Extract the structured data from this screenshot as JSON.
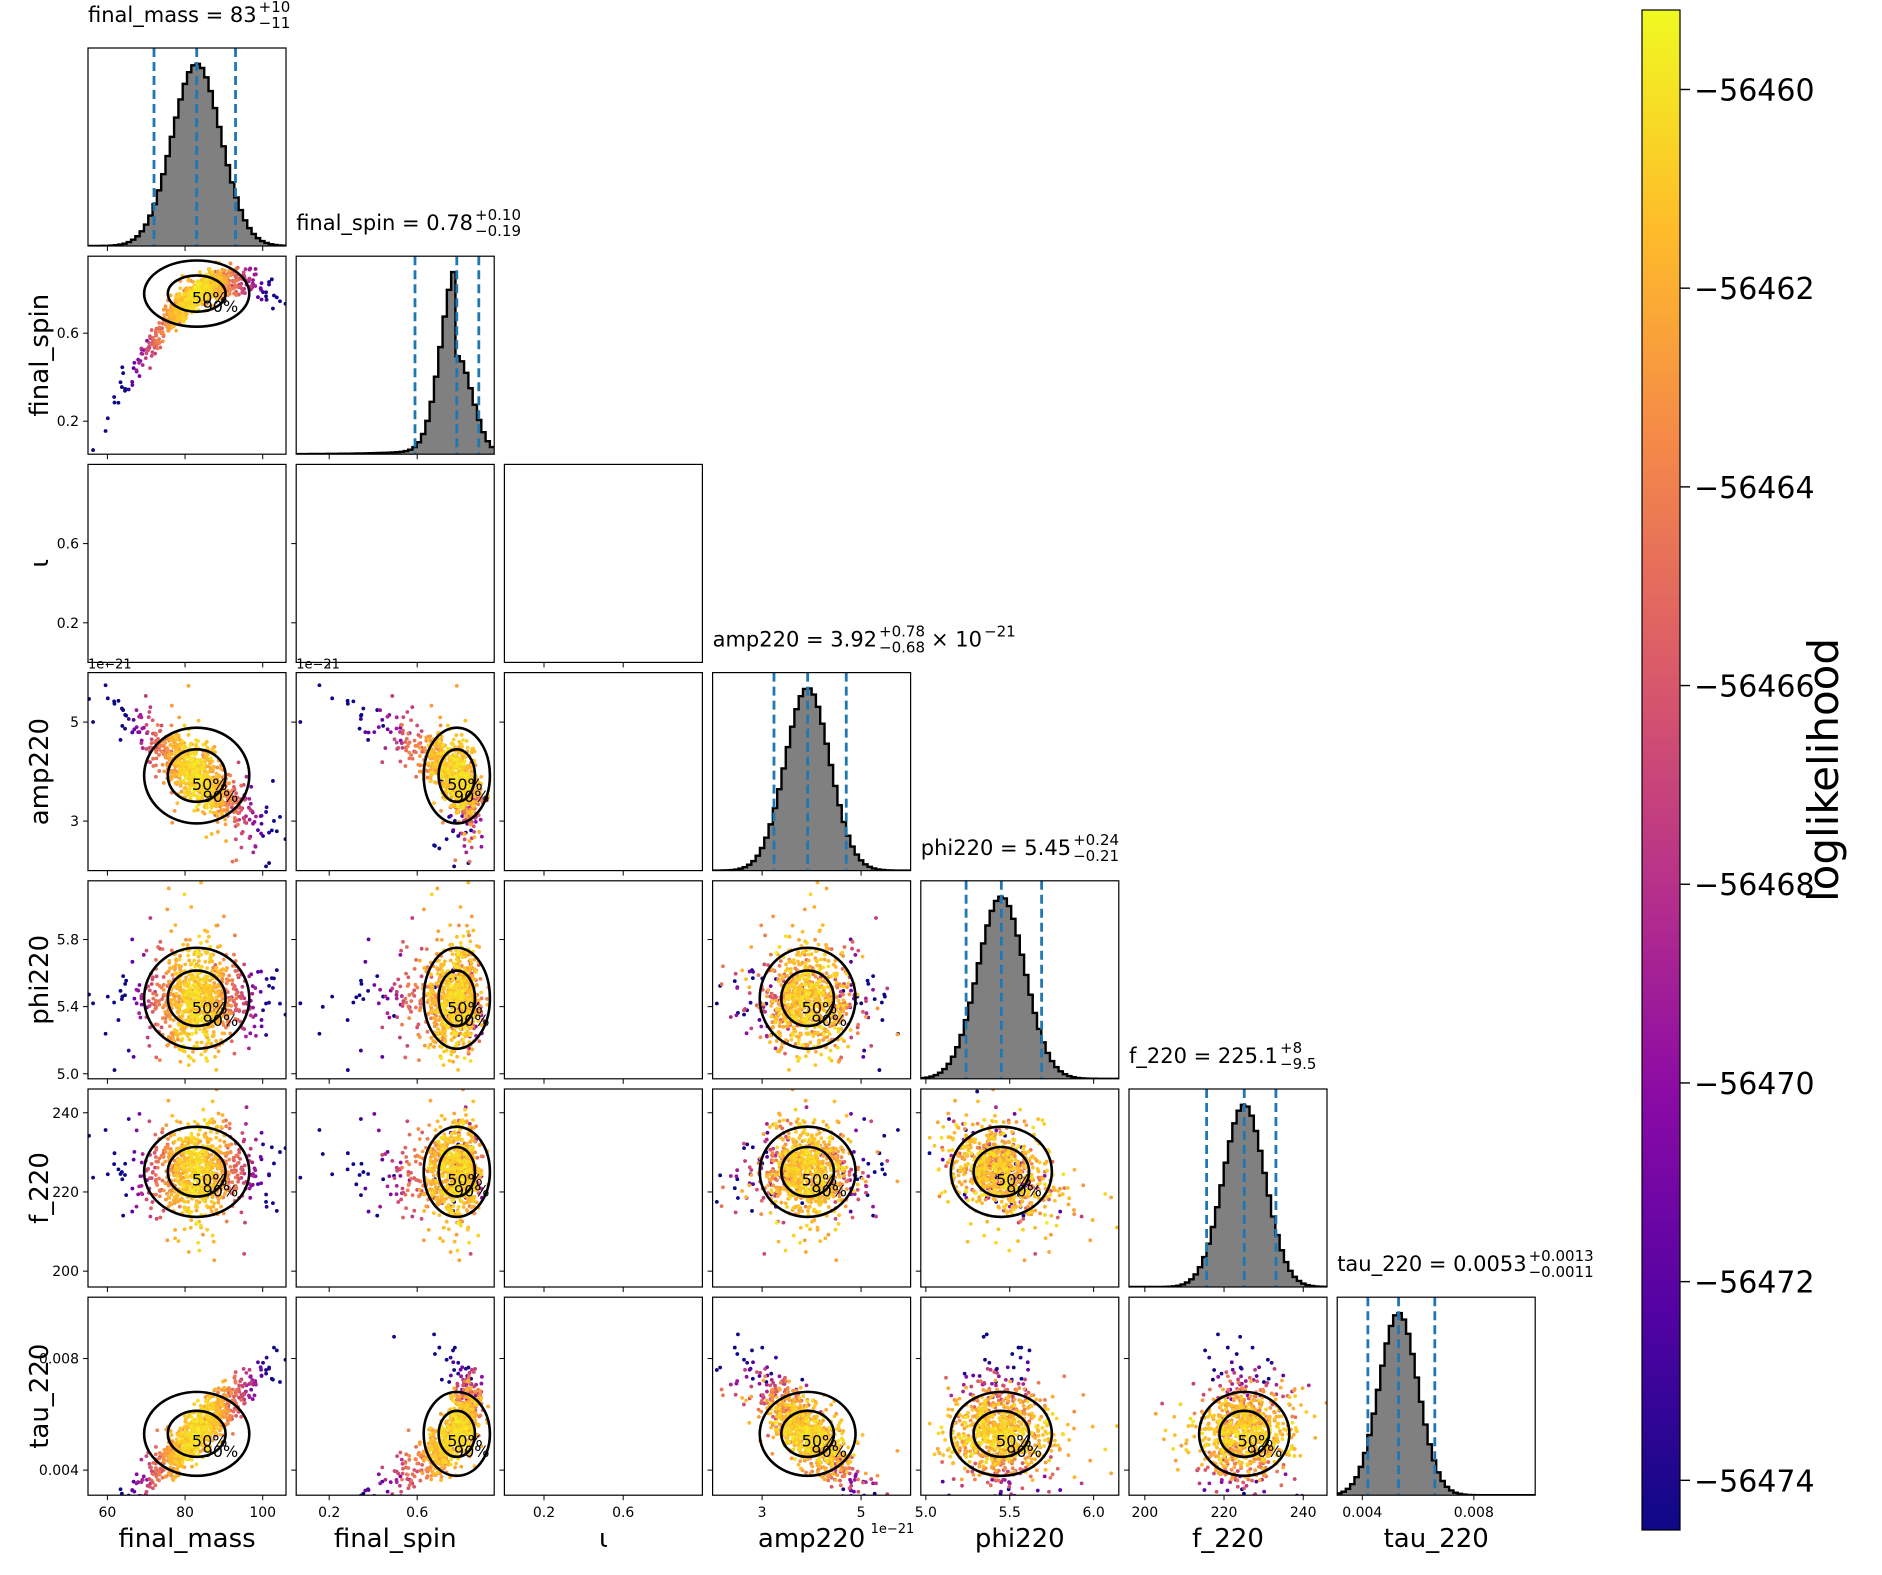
{
  "chart_data": {
    "type": "corner",
    "parameters": [
      {
        "key": "final_mass",
        "label": "final_mass",
        "range": [
          55,
          106
        ],
        "ticks": [
          60,
          80,
          100
        ],
        "tick_labels": [
          "60",
          "80",
          "100"
        ],
        "has_samples": true
      },
      {
        "key": "final_spin",
        "label": "final_spin",
        "range": [
          0.05,
          0.95
        ],
        "ticks": [
          0.2,
          0.6
        ],
        "tick_labels": [
          "0.2",
          "0.6"
        ],
        "has_samples": true
      },
      {
        "key": "iota",
        "label": "ι",
        "range": [
          0.0,
          1.0
        ],
        "ticks": [
          0.2,
          0.6
        ],
        "tick_labels": [
          "0.2",
          "0.6"
        ],
        "has_samples": false
      },
      {
        "key": "amp220",
        "label": "amp220",
        "range": [
          2.0,
          6.0
        ],
        "ticks": [
          3,
          5
        ],
        "tick_labels": [
          "3",
          "5"
        ],
        "offset_label": "1e−21",
        "has_samples": true
      },
      {
        "key": "phi220",
        "label": "phi220",
        "range": [
          4.97,
          6.15
        ],
        "ticks": [
          5.0,
          5.5,
          6.0
        ],
        "tick_labels": [
          "5.0",
          "5.5",
          "6.0"
        ],
        "y_ticks": [
          5.0,
          5.4,
          5.8
        ],
        "y_tick_labels": [
          "5.0",
          "5.4",
          "5.8"
        ],
        "has_samples": true
      },
      {
        "key": "f_220",
        "label": "f_220",
        "range": [
          196,
          246
        ],
        "ticks": [
          200,
          220,
          240
        ],
        "tick_labels": [
          "200",
          "220",
          "240"
        ],
        "has_samples": true
      },
      {
        "key": "tau_220",
        "label": "tau_220",
        "range": [
          0.0031,
          0.0102
        ],
        "ticks": [
          0.004,
          0.008
        ],
        "tick_labels": [
          "0.004",
          "0.008"
        ],
        "has_samples": true
      }
    ],
    "marginals": [
      {
        "key": "final_mass",
        "title_name": "final_mass",
        "median_text": "83",
        "plus": "+10",
        "minus": "−11",
        "exponent_text": "",
        "median": 83,
        "lower": 72,
        "upper": 93,
        "sigma": 6.3
      },
      {
        "key": "final_spin",
        "title_name": "final_spin",
        "median_text": "0.78",
        "plus": "+0.10",
        "minus": "−0.19",
        "exponent_text": "",
        "median": 0.78,
        "lower": 0.59,
        "upper": 0.88,
        "sigma": 0.07
      },
      {
        "key": "amp220",
        "title_name": "amp220",
        "median_text": "3.92",
        "plus": "+0.78",
        "minus": "−0.68",
        "exponent_text": "× 10",
        "exponent_power": "−21",
        "median": 3.92,
        "lower": 3.24,
        "upper": 4.7,
        "sigma": 0.45
      },
      {
        "key": "phi220",
        "title_name": "phi220",
        "median_text": "5.45",
        "plus": "+0.24",
        "minus": "−0.21",
        "exponent_text": "",
        "median": 5.45,
        "lower": 5.24,
        "upper": 5.69,
        "sigma": 0.14
      },
      {
        "key": "f_220",
        "title_name": "f_220",
        "median_text": "225.1",
        "plus": "+8",
        "minus": "−9.5",
        "exponent_text": "",
        "median": 225.1,
        "lower": 215.6,
        "upper": 233.1,
        "sigma": 5.3
      },
      {
        "key": "tau_220",
        "title_name": "tau_220",
        "median_text": "0.0053",
        "plus": "+0.0013",
        "minus": "−0.0011",
        "exponent_text": "",
        "median": 0.0053,
        "lower": 0.0042,
        "upper": 0.0066,
        "sigma": 0.0007
      }
    ],
    "contour_labels": [
      "50%",
      "90%"
    ],
    "credible_line_color": "#1f77b4",
    "histogram_fill": "#808080",
    "colorbar": {
      "label": "loglikelihood",
      "range": [
        -56474.5,
        -56459.2
      ],
      "ticks": [
        -56474,
        -56472,
        -56470,
        -56468,
        -56466,
        -56464,
        -56462,
        -56460
      ],
      "tick_labels": [
        "−56474",
        "−56472",
        "−56470",
        "−56468",
        "−56466",
        "−56464",
        "−56462",
        "−56460"
      ],
      "colormap": "plasma",
      "stops": [
        "#0d0887",
        "#5302a3",
        "#8b0aa5",
        "#b83289",
        "#db5c68",
        "#f48849",
        "#febc2a",
        "#f0f921"
      ]
    }
  }
}
